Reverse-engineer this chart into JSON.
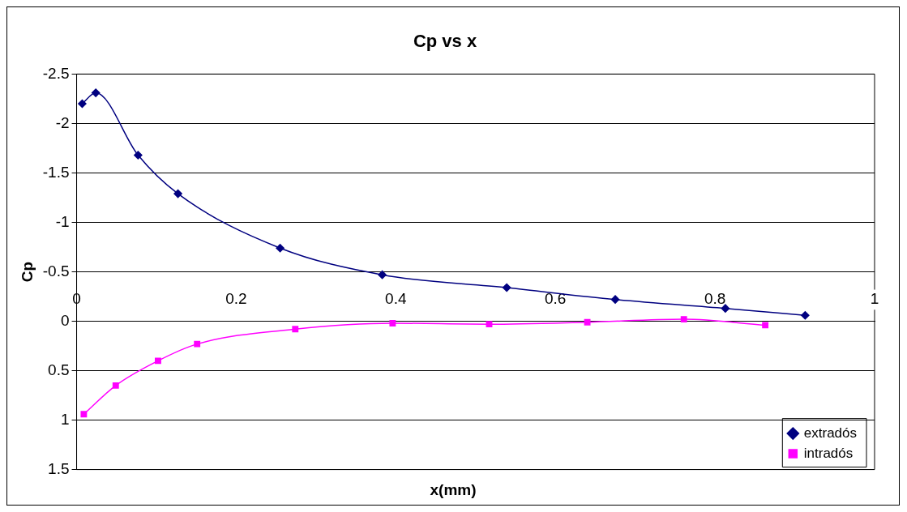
{
  "chart_data": {
    "type": "line",
    "title": "Cp vs x",
    "xlabel": "x(mm)",
    "ylabel": "Cp",
    "xlim": [
      0,
      1
    ],
    "xticks": [
      0,
      0.2,
      0.4,
      0.6,
      0.8,
      1
    ],
    "ylim": [
      1.5,
      -2.5
    ],
    "yticks": [
      -2.5,
      -2,
      -1.5,
      -1,
      -0.5,
      0,
      0.5,
      1,
      1.5
    ],
    "grid": "y",
    "legend": "bottom right",
    "line_style": "solid",
    "series": [
      {
        "name": "extradós",
        "color": "#000080",
        "marker": "diamond",
        "x": [
          0.007,
          0.024,
          0.077,
          0.127,
          0.255,
          0.383,
          0.539,
          0.675,
          0.813,
          0.913
        ],
        "values": [
          -2.2,
          -2.31,
          -1.68,
          -1.29,
          -0.74,
          -0.47,
          -0.34,
          -0.22,
          -0.13,
          -0.06
        ]
      },
      {
        "name": "intradós",
        "color": "#ff00ff",
        "marker": "square",
        "x": [
          0.009,
          0.049,
          0.102,
          0.151,
          0.274,
          0.396,
          0.517,
          0.64,
          0.761,
          0.863
        ],
        "values": [
          0.94,
          0.65,
          0.4,
          0.23,
          0.08,
          0.02,
          0.03,
          0.01,
          -0.02,
          0.04
        ]
      }
    ]
  }
}
